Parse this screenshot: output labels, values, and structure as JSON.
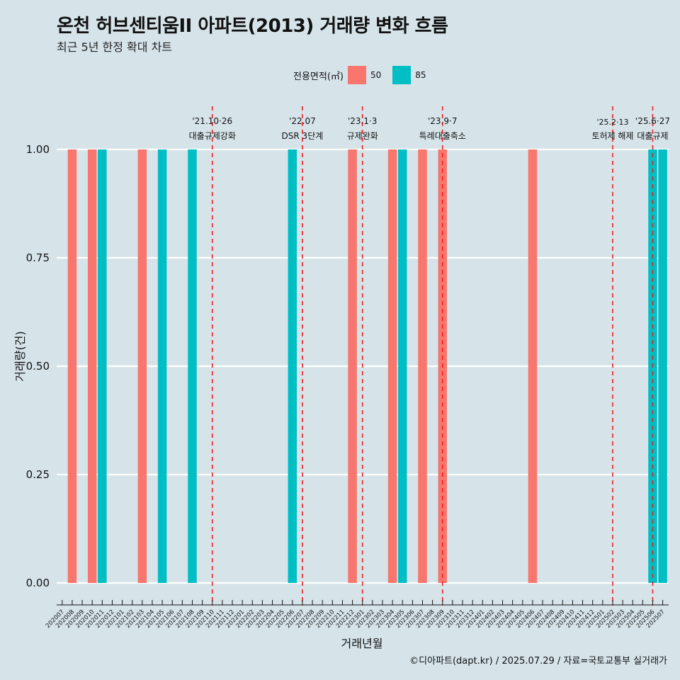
{
  "title": "온천 허브센티움II 아파트(2013) 거래량 변화 흐름",
  "subtitle": "최근 5년 한정 확대 차트",
  "caption": "©디아파트(dapt.kr) / 2025.07.29 / 자료=국토교통부 실거래가",
  "legend": {
    "title": "전용면적(㎡)",
    "items": [
      {
        "label": "50",
        "color": "#f8766d"
      },
      {
        "label": "85",
        "color": "#00bfc4"
      }
    ]
  },
  "chart_data": {
    "type": "bar",
    "xlabel": "거래년월",
    "ylabel": "거래량(건)",
    "ylim": [
      0,
      1
    ],
    "yticks": [
      "0.00",
      "0.25",
      "0.50",
      "0.75",
      "1.00"
    ],
    "categories": [
      "202007",
      "202008",
      "202009",
      "202010",
      "202011",
      "202012",
      "202101",
      "202102",
      "202103",
      "202104",
      "202105",
      "202106",
      "202107",
      "202108",
      "202109",
      "202110",
      "202111",
      "202112",
      "202201",
      "202202",
      "202203",
      "202204",
      "202205",
      "202206",
      "202207",
      "202208",
      "202209",
      "202210",
      "202211",
      "202212",
      "202301",
      "202302",
      "202303",
      "202304",
      "202305",
      "202306",
      "202307",
      "202308",
      "202309",
      "202310",
      "202311",
      "202312",
      "202401",
      "202402",
      "202403",
      "202404",
      "202405",
      "202406",
      "202407",
      "202408",
      "202409",
      "202410",
      "202411",
      "202412",
      "202501",
      "202502",
      "202503",
      "202504",
      "202505",
      "202506",
      "202507"
    ],
    "series": [
      {
        "name": "50",
        "color": "#f8766d",
        "points": [
          {
            "x": "202008",
            "y": 1
          },
          {
            "x": "202010",
            "y": 1
          },
          {
            "x": "202103",
            "y": 1
          },
          {
            "x": "202212",
            "y": 1
          },
          {
            "x": "202304",
            "y": 1
          },
          {
            "x": "202307",
            "y": 1
          },
          {
            "x": "202309",
            "y": 1
          },
          {
            "x": "202406",
            "y": 1
          }
        ]
      },
      {
        "name": "85",
        "color": "#00bfc4",
        "points": [
          {
            "x": "202011",
            "y": 1
          },
          {
            "x": "202105",
            "y": 1
          },
          {
            "x": "202108",
            "y": 1
          },
          {
            "x": "202206",
            "y": 1
          },
          {
            "x": "202305",
            "y": 1
          },
          {
            "x": "202506",
            "y": 1
          },
          {
            "x": "202507",
            "y": 1
          }
        ]
      }
    ],
    "annotations": [
      {
        "at": "202110",
        "date": "'21.10·26",
        "text": "대출규제강화"
      },
      {
        "at": "202207",
        "date": "'22.07",
        "text": "DSR 3단계"
      },
      {
        "at": "202301",
        "date": "'23.1·3",
        "text": "규제완화"
      },
      {
        "at": "202309",
        "date": "'23.9·7",
        "text": "특례대출축소"
      },
      {
        "at": "202502",
        "date": "'25.2·13",
        "text": "토허제 해제"
      },
      {
        "at": "202506",
        "date": "'25.6·27",
        "text": "대출규제"
      }
    ],
    "grid": true,
    "legend_position": "top"
  }
}
